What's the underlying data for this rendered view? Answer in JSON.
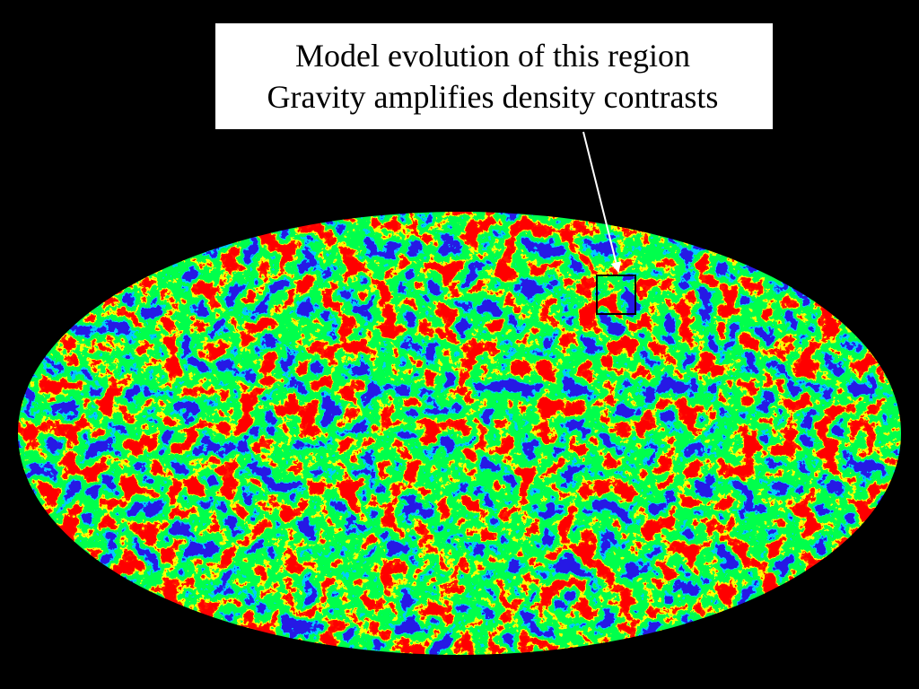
{
  "callout": {
    "lines": [
      "Model evolution of this region",
      "Gravity amplifies density contrasts"
    ]
  }
}
